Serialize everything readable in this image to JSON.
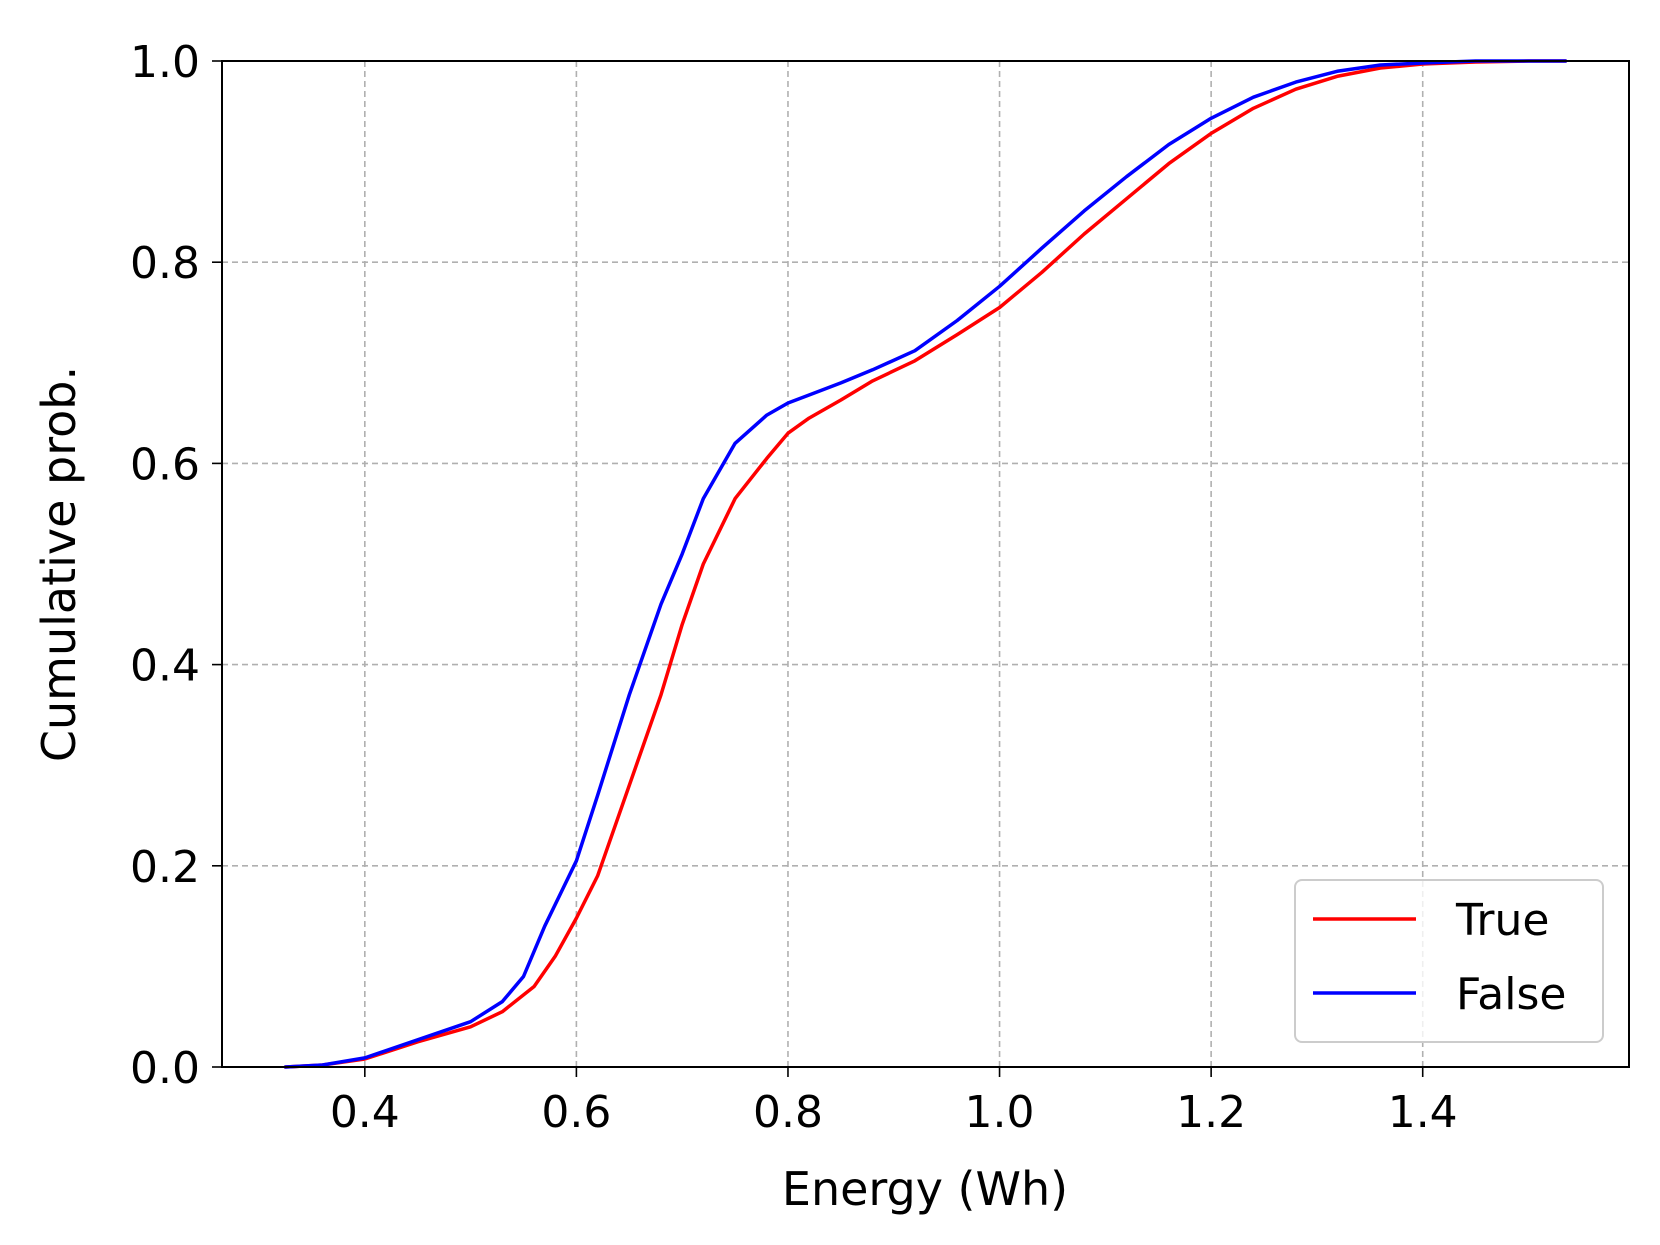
{
  "chart_data": {
    "type": "line",
    "title": "",
    "xlabel": "Energy (Wh)",
    "ylabel": "Cumulative prob.",
    "xlim": [
      0.265,
      1.595
    ],
    "ylim": [
      0.0,
      1.0
    ],
    "xticks": [
      0.4,
      0.6,
      0.8,
      1.0,
      1.2,
      1.4
    ],
    "xtick_labels": [
      "0.4",
      "0.6",
      "0.8",
      "1.0",
      "1.2",
      "1.4"
    ],
    "yticks": [
      0.0,
      0.2,
      0.4,
      0.6,
      0.8,
      1.0
    ],
    "ytick_labels": [
      "0.0",
      "0.2",
      "0.4",
      "0.6",
      "0.8",
      "1.0"
    ],
    "grid": true,
    "legend_position": "lower-right",
    "series": [
      {
        "name": "True",
        "color": "#ff0000",
        "x": [
          0.325,
          0.36,
          0.4,
          0.45,
          0.5,
          0.53,
          0.56,
          0.58,
          0.6,
          0.62,
          0.65,
          0.68,
          0.7,
          0.72,
          0.75,
          0.78,
          0.8,
          0.82,
          0.85,
          0.88,
          0.92,
          0.96,
          1.0,
          1.04,
          1.08,
          1.12,
          1.16,
          1.2,
          1.24,
          1.28,
          1.32,
          1.36,
          1.4,
          1.45,
          1.5,
          1.535
        ],
        "y": [
          0.0,
          0.002,
          0.008,
          0.025,
          0.04,
          0.055,
          0.08,
          0.11,
          0.148,
          0.19,
          0.28,
          0.37,
          0.44,
          0.5,
          0.565,
          0.605,
          0.63,
          0.645,
          0.663,
          0.682,
          0.702,
          0.728,
          0.755,
          0.79,
          0.828,
          0.863,
          0.898,
          0.928,
          0.953,
          0.972,
          0.985,
          0.993,
          0.997,
          0.999,
          1.0,
          1.0
        ]
      },
      {
        "name": "False",
        "color": "#0000ff",
        "x": [
          0.325,
          0.36,
          0.4,
          0.45,
          0.5,
          0.53,
          0.55,
          0.57,
          0.6,
          0.62,
          0.65,
          0.68,
          0.7,
          0.72,
          0.75,
          0.78,
          0.8,
          0.82,
          0.85,
          0.88,
          0.92,
          0.96,
          1.0,
          1.04,
          1.08,
          1.12,
          1.16,
          1.2,
          1.24,
          1.28,
          1.32,
          1.36,
          1.4,
          1.45,
          1.5,
          1.535
        ],
        "y": [
          0.0,
          0.002,
          0.009,
          0.027,
          0.045,
          0.065,
          0.09,
          0.14,
          0.205,
          0.27,
          0.37,
          0.46,
          0.51,
          0.565,
          0.62,
          0.648,
          0.66,
          0.668,
          0.68,
          0.693,
          0.712,
          0.742,
          0.776,
          0.814,
          0.851,
          0.885,
          0.917,
          0.943,
          0.964,
          0.979,
          0.99,
          0.996,
          0.998,
          1.0,
          1.0,
          1.0
        ]
      }
    ]
  }
}
